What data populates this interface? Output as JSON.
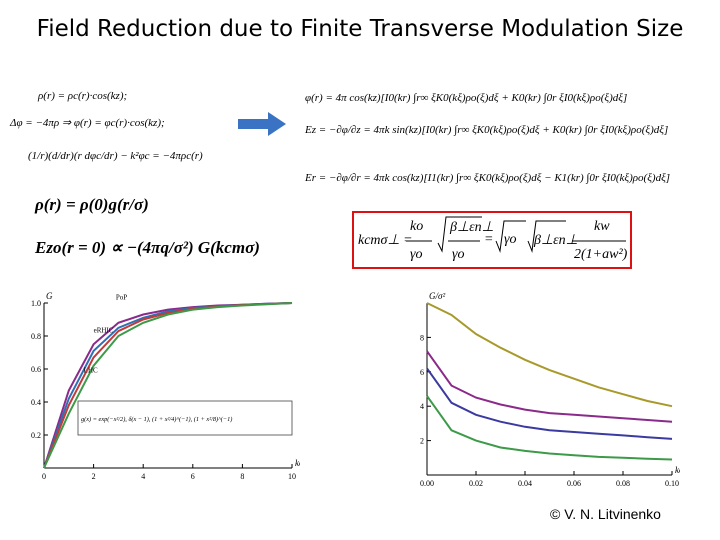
{
  "title": "Field Reduction due to Finite Transverse Modulation Size",
  "equations_left": {
    "line1": "ρ(r) = ρc(r)·cos(kz);",
    "line2": "Δφ = −4πρ ⇒ φ(r) = φc(r)·cos(kz);",
    "line3": "(1/r)(d/dr)(r dφc/dr) − k²φc = −4πρc(r)",
    "gaussian": "ρ(r) = ρ(0)g(r/σ)",
    "field": "Ezo(r = 0) ∝ −(4πq/σ²) G(kcmσ)"
  },
  "equations_right": {
    "phi": "φ(r) = 4π cos(kz)[I0(kr) ∫r∞ ξK0(kξ)ρo(ξ)dξ + K0(kr) ∫0r ξI0(kξ)ρo(ξ)dξ]",
    "Ez": "Ez = −∂φ/∂z = 4πk sin(kz)[I0(kr) ∫r∞ ξK0(kξ)ρo(ξ)dξ + K0(kr) ∫0r ξI0(kξ)ρo(ξ)dξ]",
    "Er": "Er = −∂φ/∂r = 4πk cos(kz)[I1(kr) ∫r∞ ξK0(kξ)ρo(ξ)dξ − K1(kr) ∫0r ξI0(kξ)ρo(ξ)dξ]"
  },
  "boxed": {
    "lhs": "kcmσ⊥ =",
    "frac1_num": "ko",
    "frac1_den": "γo",
    "sqrt1_num": "β⊥εn⊥",
    "sqrt1_den": "γo",
    "eq2": "=",
    "sqrt2": "γo",
    "sqrt3": "β⊥εn⊥",
    "frac2_num": "kw",
    "frac2_den": "2(1+aw²)"
  },
  "chart_data": [
    {
      "type": "line",
      "x": [
        0,
        1,
        2,
        3,
        4,
        5,
        6,
        7,
        8,
        9,
        10
      ],
      "xlabel": "kσ",
      "ylabel": "G",
      "xlim": [
        0,
        10
      ],
      "ylim": [
        0,
        1.0
      ],
      "xticks": [
        "0",
        "2",
        "4",
        "6",
        "8",
        "10"
      ],
      "yticks": [
        "0.2",
        "0.4",
        "0.6",
        "0.8",
        "1.0"
      ],
      "series": [
        {
          "name": "PoP",
          "color": "#8a2a8a",
          "values": [
            0,
            0.47,
            0.75,
            0.88,
            0.93,
            0.96,
            0.975,
            0.985,
            0.99,
            0.995,
            1.0
          ]
        },
        {
          "name": "eRHIC",
          "color": "#2f6fb4",
          "values": [
            0,
            0.42,
            0.71,
            0.85,
            0.91,
            0.95,
            0.97,
            0.98,
            0.99,
            0.995,
            1.0
          ]
        },
        {
          "color": "#c23a3a",
          "values": [
            0,
            0.38,
            0.67,
            0.83,
            0.9,
            0.94,
            0.965,
            0.978,
            0.988,
            0.994,
            1.0
          ]
        },
        {
          "name": "LHC",
          "color": "#3c9a48",
          "values": [
            0,
            0.33,
            0.62,
            0.8,
            0.88,
            0.93,
            0.96,
            0.975,
            0.985,
            0.993,
            1.0
          ]
        }
      ],
      "annotation": "g(x) = exp(−x²/2), δ(x − 1), (1 + x²/4)^(−1), (1 + x²/8)^(−1)"
    },
    {
      "type": "line",
      "x": [
        0,
        0.01,
        0.02,
        0.03,
        0.04,
        0.05,
        0.06,
        0.07,
        0.08,
        0.09,
        0.1
      ],
      "xlabel": "kσ",
      "ylabel": "G/σ²",
      "xlim": [
        0,
        0.1
      ],
      "ylim": [
        0,
        10
      ],
      "xticks": [
        "0.00",
        "0.02",
        "0.04",
        "0.06",
        "0.08",
        "0.10"
      ],
      "yticks": [
        "2",
        "4",
        "6",
        "8"
      ],
      "series": [
        {
          "color": "#a89a2a",
          "values": [
            10.5,
            9.3,
            8.2,
            7.4,
            6.7,
            6.1,
            5.6,
            5.1,
            4.7,
            4.3,
            4.0
          ]
        },
        {
          "color": "#8a2a8a",
          "values": [
            7.2,
            5.2,
            4.5,
            4.1,
            3.8,
            3.6,
            3.5,
            3.4,
            3.3,
            3.2,
            3.1
          ]
        },
        {
          "color": "#3a3aa0",
          "values": [
            6.2,
            4.2,
            3.5,
            3.1,
            2.8,
            2.6,
            2.5,
            2.4,
            2.3,
            2.2,
            2.1
          ]
        },
        {
          "color": "#3c9a48",
          "values": [
            4.6,
            2.6,
            2.0,
            1.6,
            1.4,
            1.25,
            1.15,
            1.05,
            1.0,
            0.95,
            0.9
          ]
        }
      ]
    }
  ],
  "copyright": "© V. N. Litvinenko"
}
